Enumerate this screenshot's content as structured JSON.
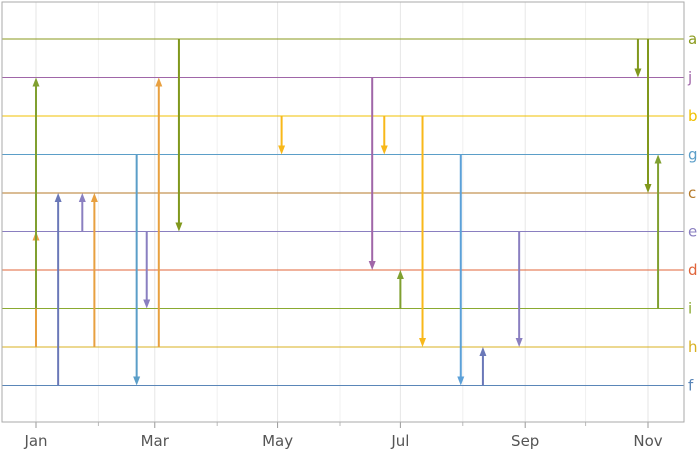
{
  "chart_data": {
    "type": "arrow-timeline",
    "x_axis": {
      "min": "2021-01-01",
      "max": "2021-11-30",
      "tick_labels": [
        {
          "label": "Jan",
          "date": "2021-01-01"
        },
        {
          "label": "Mar",
          "date": "2021-03-01"
        },
        {
          "label": "May",
          "date": "2021-05-01"
        },
        {
          "label": "Jul",
          "date": "2021-07-01"
        },
        {
          "label": "Sep",
          "date": "2021-09-01"
        },
        {
          "label": "Nov",
          "date": "2021-11-01"
        }
      ],
      "minor_gridlines": [
        "2021-02-01",
        "2021-04-01",
        "2021-06-01",
        "2021-08-01",
        "2021-10-01"
      ]
    },
    "series": [
      {
        "name": "a",
        "color": "#8a9a1c"
      },
      {
        "name": "j",
        "color": "#a066a8"
      },
      {
        "name": "b",
        "color": "#f0c000"
      },
      {
        "name": "g",
        "color": "#5b9ec8"
      },
      {
        "name": "c",
        "color": "#b57a2a"
      },
      {
        "name": "e",
        "color": "#8a7fc0"
      },
      {
        "name": "d",
        "color": "#e0643a"
      },
      {
        "name": "i",
        "color": "#8aaa30"
      },
      {
        "name": "h",
        "color": "#d8b020"
      },
      {
        "name": "f",
        "color": "#5a86b8"
      }
    ],
    "arrows": [
      {
        "date": "2021-01-01",
        "from": "h",
        "to": "e",
        "color": "#e8a040"
      },
      {
        "date": "2021-01-01",
        "from": "i",
        "to": "j",
        "color": "#80a030"
      },
      {
        "date": "2021-01-12",
        "from": "f",
        "to": "c",
        "color": "#6a78b8"
      },
      {
        "date": "2021-01-24",
        "from": "e",
        "to": "c",
        "color": "#8a7fc0"
      },
      {
        "date": "2021-01-30",
        "from": "h",
        "to": "c",
        "color": "#e8a040"
      },
      {
        "date": "2021-02-20",
        "from": "g",
        "to": "f",
        "color": "#5b9ec8"
      },
      {
        "date": "2021-02-25",
        "from": "e",
        "to": "i",
        "color": "#8a7fc0"
      },
      {
        "date": "2021-03-03",
        "from": "h",
        "to": "j",
        "color": "#e8a040"
      },
      {
        "date": "2021-03-13",
        "from": "a",
        "to": "e",
        "color": "#80981c"
      },
      {
        "date": "2021-05-03",
        "from": "b",
        "to": "g",
        "color": "#f8b81a"
      },
      {
        "date": "2021-06-17",
        "from": "j",
        "to": "d",
        "color": "#a066a8"
      },
      {
        "date": "2021-06-23",
        "from": "b",
        "to": "g",
        "color": "#f8b81a"
      },
      {
        "date": "2021-07-01",
        "from": "i",
        "to": "d",
        "color": "#80a030"
      },
      {
        "date": "2021-07-12",
        "from": "b",
        "to": "h",
        "color": "#f8b81a"
      },
      {
        "date": "2021-07-31",
        "from": "g",
        "to": "f",
        "color": "#5ba0d8"
      },
      {
        "date": "2021-08-11",
        "from": "f",
        "to": "h",
        "color": "#6a78b8"
      },
      {
        "date": "2021-08-29",
        "from": "e",
        "to": "h",
        "color": "#8a7fc0"
      },
      {
        "date": "2021-10-27",
        "from": "a",
        "to": "j",
        "color": "#80981c"
      },
      {
        "date": "2021-11-01",
        "from": "a",
        "to": "c",
        "color": "#80981c"
      },
      {
        "date": "2021-11-06",
        "from": "i",
        "to": "g",
        "color": "#80a030"
      }
    ]
  }
}
